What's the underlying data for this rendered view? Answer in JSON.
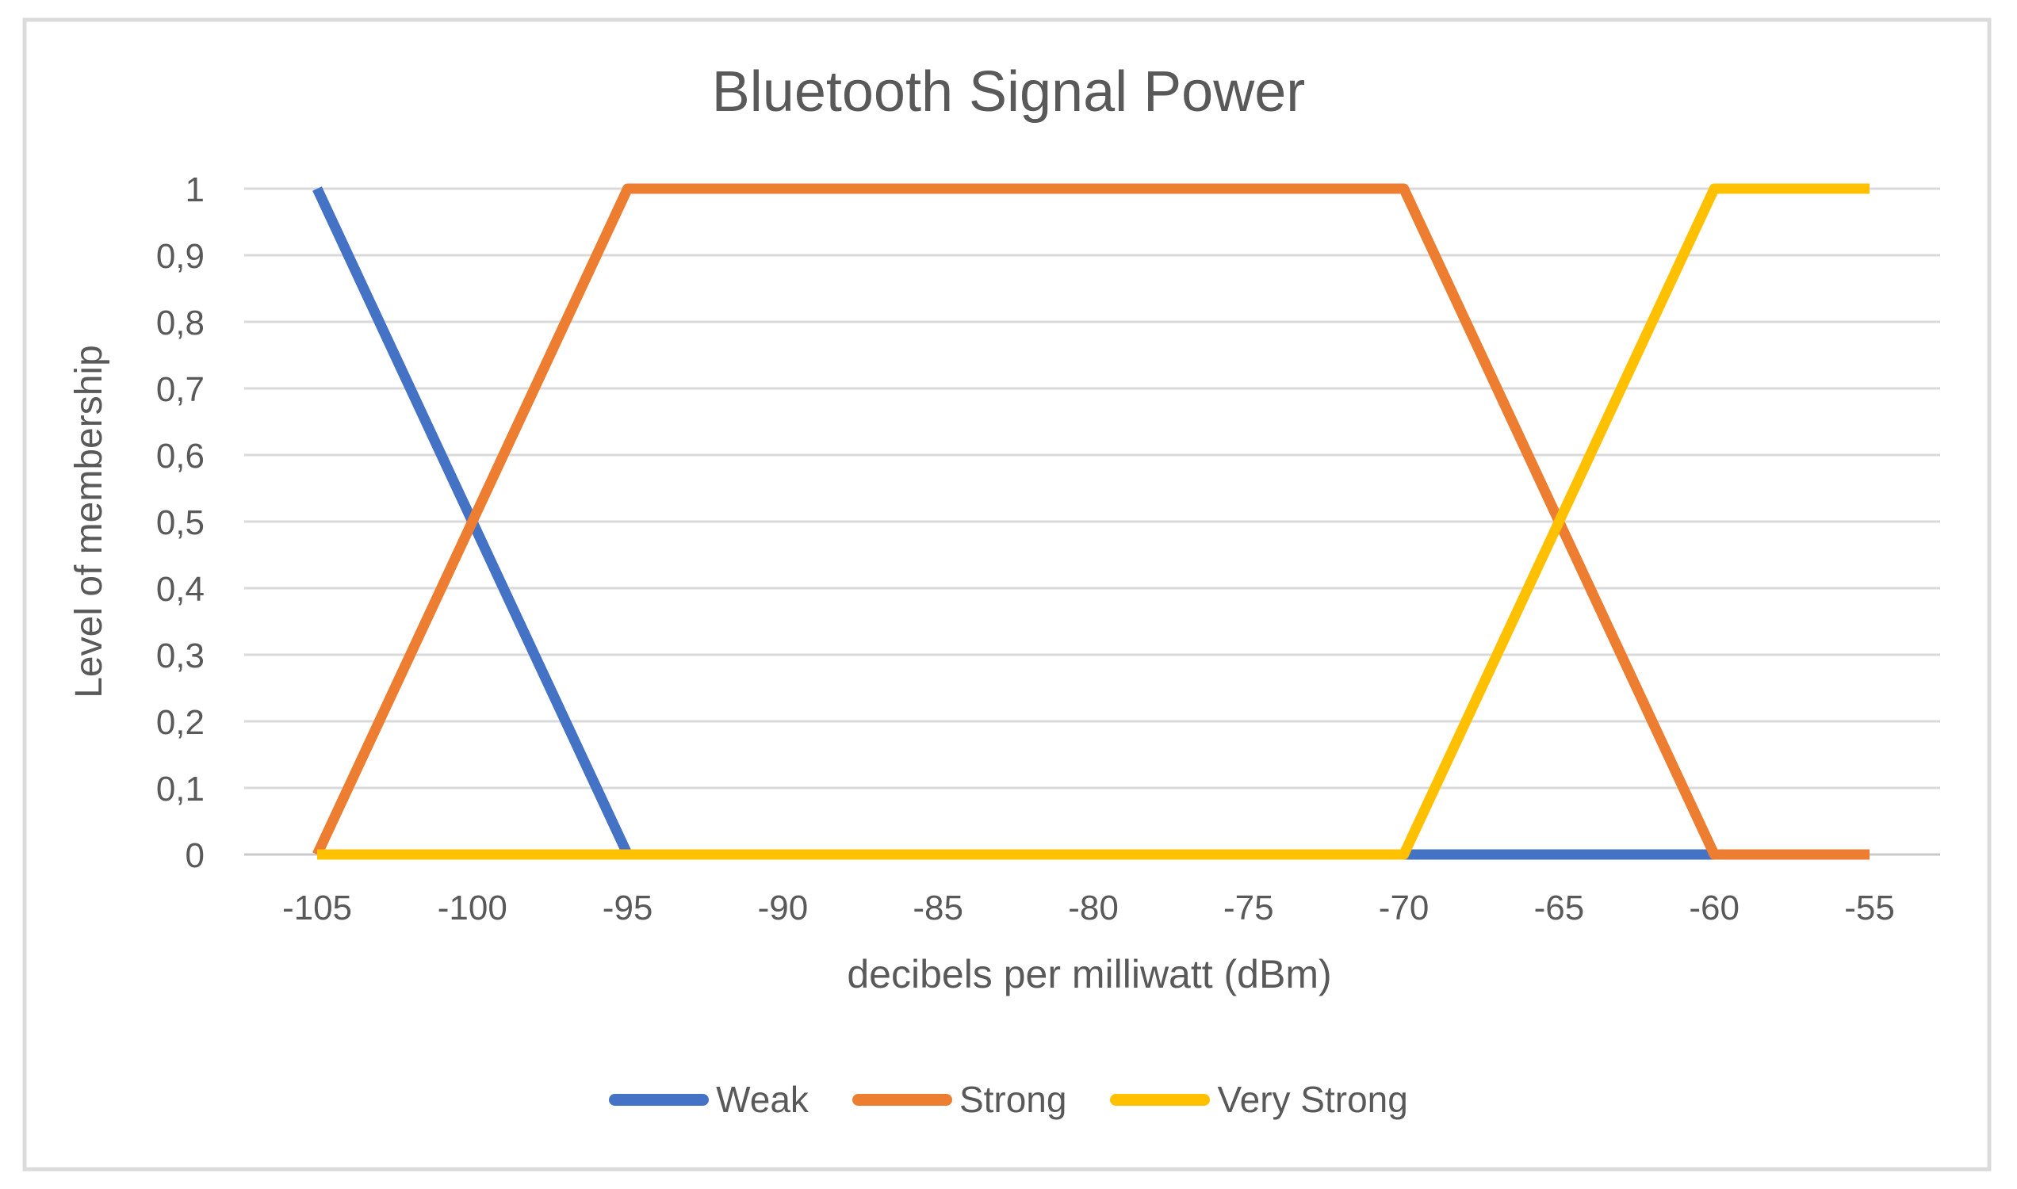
{
  "chart_data": {
    "type": "line",
    "title": "Bluetooth Signal Power",
    "xlabel": "decibels per milliwatt (dBm)",
    "ylabel": "Level of membership",
    "xlim": [
      -107.5,
      -52.5
    ],
    "ylim": [
      0,
      1
    ],
    "grid": true,
    "legend_position": "bottom",
    "x_ticks": [
      {
        "value": -105,
        "label": "-105"
      },
      {
        "value": -100,
        "label": "-100"
      },
      {
        "value": -95,
        "label": "-95"
      },
      {
        "value": -90,
        "label": "-90"
      },
      {
        "value": -85,
        "label": "-85"
      },
      {
        "value": -80,
        "label": "-80"
      },
      {
        "value": -75,
        "label": "-75"
      },
      {
        "value": -70,
        "label": "-70"
      },
      {
        "value": -65,
        "label": "-65"
      },
      {
        "value": -60,
        "label": "-60"
      },
      {
        "value": -55,
        "label": "-55"
      }
    ],
    "y_ticks": [
      {
        "value": 0,
        "label": "0"
      },
      {
        "value": 0.1,
        "label": "0,1"
      },
      {
        "value": 0.2,
        "label": "0,2"
      },
      {
        "value": 0.3,
        "label": "0,3"
      },
      {
        "value": 0.4,
        "label": "0,4"
      },
      {
        "value": 0.5,
        "label": "0,5"
      },
      {
        "value": 0.6,
        "label": "0,6"
      },
      {
        "value": 0.7,
        "label": "0,7"
      },
      {
        "value": 0.8,
        "label": "0,8"
      },
      {
        "value": 0.9,
        "label": "0,9"
      },
      {
        "value": 1,
        "label": "1"
      }
    ],
    "series": [
      {
        "name": "Weak",
        "color": "#4472C4",
        "points": [
          [
            -105,
            1
          ],
          [
            -95,
            0
          ],
          [
            -55,
            0
          ]
        ]
      },
      {
        "name": "Strong",
        "color": "#ED7D31",
        "points": [
          [
            -105,
            0
          ],
          [
            -95,
            1
          ],
          [
            -70,
            1
          ],
          [
            -60,
            0
          ],
          [
            -55,
            0
          ]
        ]
      },
      {
        "name": "Very Strong",
        "color": "#FFC000",
        "points": [
          [
            -105,
            0
          ],
          [
            -70,
            0
          ],
          [
            -60,
            1
          ],
          [
            -55,
            1
          ]
        ]
      }
    ]
  },
  "colors": {
    "gridline": "#D9D9D9",
    "axis_line": "#C9C9C9",
    "text": "#595959",
    "border": "#DBDBDB",
    "background": "#FFFFFF"
  }
}
